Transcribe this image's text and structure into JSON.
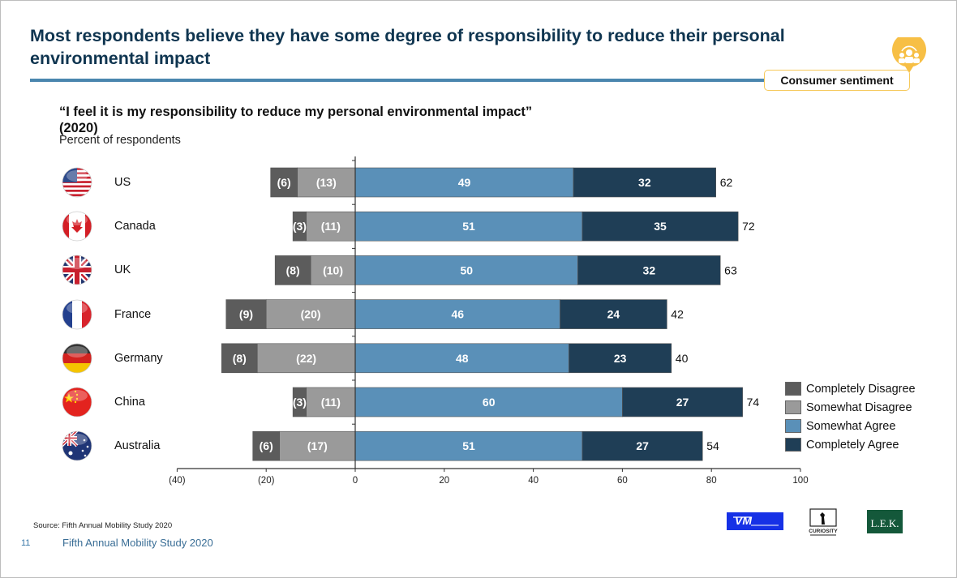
{
  "slide": {
    "title": "Most respondents believe they have some degree of responsibility to reduce their personal environmental impact",
    "badge_label": "Consumer sentiment",
    "badge_icon": "people-group-icon",
    "subtitle_line1": "“I feel it is my responsibility to reduce my personal environmental impact”",
    "subtitle_line2": "(2020)",
    "unit_label": "Percent of respondents",
    "source": "Source:   Fifth Annual Mobility Study 2020",
    "page_number": "11",
    "footer_text": "Fifth Annual Mobility Study 2020",
    "logos": [
      "VM",
      "CURIOSITY",
      "L.E.K."
    ],
    "colors": {
      "title": "#0f3550",
      "rule": "#4a86ae",
      "badge_border": "#f6c95b",
      "badge_pin": "#f7bf45"
    }
  },
  "chart_data": {
    "type": "bar",
    "orientation": "horizontal-diverging-stacked",
    "title": "“I feel it is my responsibility to reduce my personal environmental impact” (2020)",
    "xlabel": "",
    "ylabel": "Percent of respondents",
    "xlim": [
      -40,
      100
    ],
    "xticks": [
      -40,
      -20,
      0,
      20,
      40,
      60,
      80,
      100
    ],
    "xtick_labels": [
      "(40)",
      "(20)",
      "0",
      "20",
      "40",
      "60",
      "80",
      "100"
    ],
    "grid": false,
    "legend_position": "bottom-right",
    "categories": [
      "US",
      "Canada",
      "UK",
      "France",
      "Germany",
      "China",
      "Australia"
    ],
    "flag_icons": [
      "us-flag-icon",
      "canada-flag-icon",
      "uk-flag-icon",
      "france-flag-icon",
      "germany-flag-icon",
      "china-flag-icon",
      "australia-flag-icon"
    ],
    "series": [
      {
        "name": "Completely Disagree",
        "color": "#5c5c5c",
        "values": [
          -6,
          -3,
          -8,
          -9,
          -8,
          -3,
          -6
        ],
        "labels": [
          "(6)",
          "(3)",
          "(8)",
          "(9)",
          "(8)",
          "(3)",
          "(6)"
        ]
      },
      {
        "name": "Somewhat Disagree",
        "color": "#9a9a9a",
        "values": [
          -13,
          -11,
          -10,
          -20,
          -22,
          -11,
          -17
        ],
        "labels": [
          "(13)",
          "(11)",
          "(10)",
          "(20)",
          "(22)",
          "(11)",
          "(17)"
        ]
      },
      {
        "name": "Somewhat Agree",
        "color": "#5a90b8",
        "values": [
          49,
          51,
          50,
          46,
          48,
          60,
          51
        ],
        "labels": [
          "49",
          "51",
          "50",
          "46",
          "48",
          "60",
          "51"
        ]
      },
      {
        "name": "Completely Agree",
        "color": "#1f3e56",
        "values": [
          32,
          35,
          32,
          24,
          23,
          27,
          27
        ],
        "labels": [
          "32",
          "35",
          "32",
          "24",
          "23",
          "27",
          "27"
        ]
      }
    ],
    "end_labels": [
      "62",
      "72",
      "63",
      "42",
      "40",
      "74",
      "54"
    ]
  }
}
